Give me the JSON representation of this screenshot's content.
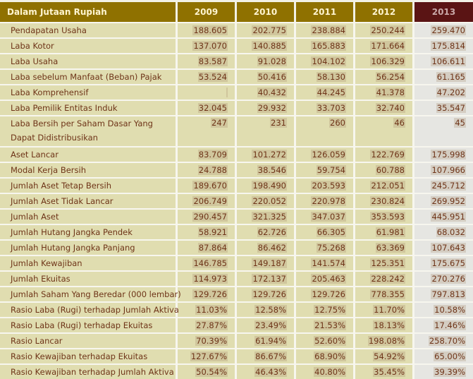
{
  "header": {
    "label": "Dalam Jutaan Rupiah",
    "years": [
      "2009",
      "2010",
      "2011",
      "2012",
      "2013"
    ]
  },
  "rows": [
    {
      "label": "Pendapatan Usaha",
      "values": [
        "188.605",
        "202.775",
        "238.884",
        "250.244",
        "259.470"
      ]
    },
    {
      "label": "Laba Kotor",
      "values": [
        "137.070",
        "140.885",
        "165.883",
        "171.664",
        "175.814"
      ]
    },
    {
      "label": "Laba Usaha",
      "values": [
        "83.587",
        "91.028",
        "104.102",
        "106.329",
        "106.611"
      ]
    },
    {
      "label": "Laba sebelum Manfaat (Beban) Pajak",
      "values": [
        "53.524",
        "50.416",
        "58.130",
        "56.254",
        "61.165"
      ]
    },
    {
      "label": "Laba Komprehensif",
      "values": [
        "",
        "40.432",
        "44.245",
        "41.378",
        "47.202"
      ]
    },
    {
      "label": "Laba Pemilik Entitas Induk",
      "values": [
        "32.045",
        "29.932",
        "33.703",
        "32.740",
        "35.547"
      ]
    },
    {
      "label": "Laba Bersih per Saham Dasar Yang Dapat Didistribusikan",
      "values": [
        "247",
        "231",
        "260",
        "46",
        "45"
      ]
    },
    {
      "label": "Aset Lancar",
      "values": [
        "83.709",
        "101.272",
        "126.059",
        "122.769",
        "175.998"
      ]
    },
    {
      "label": "Modal Kerja Bersih",
      "values": [
        "24.788",
        "38.546",
        "59.754",
        "60.788",
        "107.966"
      ]
    },
    {
      "label": "Jumlah Aset Tetap Bersih",
      "values": [
        "189.670",
        "198.490",
        "203.593",
        "212.051",
        "245.712"
      ]
    },
    {
      "label": "Jumlah Aset Tidak Lancar",
      "values": [
        "206.749",
        "220.052",
        "220.978",
        "230.824",
        "269.952"
      ]
    },
    {
      "label": "Jumlah Aset",
      "values": [
        "290.457",
        "321.325",
        "347.037",
        "353.593",
        "445.951"
      ]
    },
    {
      "label": "Jumlah Hutang Jangka Pendek",
      "values": [
        "58.921",
        "62.726",
        "66.305",
        "61.981",
        "68.032"
      ]
    },
    {
      "label": "Jumlah Hutang Jangka Panjang",
      "values": [
        "87.864",
        "86.462",
        "75.268",
        "63.369",
        "107.643"
      ]
    },
    {
      "label": "Jumlah Kewajiban",
      "values": [
        "146.785",
        "149.187",
        "141.574",
        "125.351",
        "175.675"
      ]
    },
    {
      "label": "Jumlah Ekuitas",
      "values": [
        "114.973",
        "172.137",
        "205.463",
        "228.242",
        "270.276"
      ]
    },
    {
      "label": "Jumlah Saham Yang Beredar (000 lembar)",
      "values": [
        "129.726",
        "129.726",
        "129.726",
        "778.355",
        "797.813"
      ]
    },
    {
      "label": "Rasio Laba (Rugi) terhadap Jumlah Aktiva",
      "values": [
        "11.03%",
        "12.58%",
        "12.75%",
        "11.70%",
        "10.58%"
      ]
    },
    {
      "label": "Rasio Laba (Rugi) terhadap Ekuitas",
      "values": [
        "27.87%",
        "23.49%",
        "21.53%",
        "18.13%",
        "17.46%"
      ]
    },
    {
      "label": "Rasio Lancar",
      "values": [
        "70.39%",
        "61.94%",
        "52.60%",
        "198.08%",
        "258.70%"
      ]
    },
    {
      "label": "Rasio Kewajiban terhadap Ekuitas",
      "values": [
        "127.67%",
        "86.67%",
        "68.90%",
        "54.92%",
        "65.00%"
      ]
    },
    {
      "label": "Rasio Kewajiban terhadap Jumlah Aktiva",
      "values": [
        "50.54%",
        "46.43%",
        "40.80%",
        "35.45%",
        "39.39%"
      ]
    }
  ]
}
